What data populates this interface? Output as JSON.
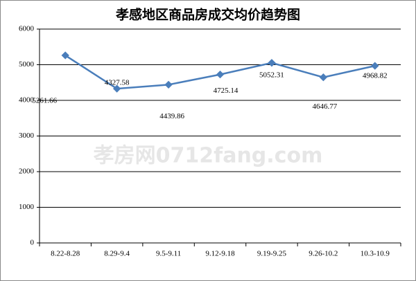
{
  "chart_data": {
    "type": "line",
    "title": "孝感地区商品房成交均价趋势图",
    "watermark": "孝房网0712fang.com",
    "categories": [
      "8.22-8.28",
      "8.29-9.4",
      "9.5-9.11",
      "9.12-9.18",
      "9.19-9.25",
      "9.26-10.2",
      "10.3-10.9"
    ],
    "series": [
      {
        "name": "成交均价",
        "color": "#4a7ebb",
        "values": [
          5261.66,
          4327.58,
          4439.86,
          4725.14,
          5052.31,
          4646.77,
          4968.82
        ]
      }
    ],
    "ylim": [
      0,
      6000
    ],
    "yticks": [
      0,
      1000,
      2000,
      3000,
      4000,
      5000,
      6000
    ],
    "grid": true
  }
}
